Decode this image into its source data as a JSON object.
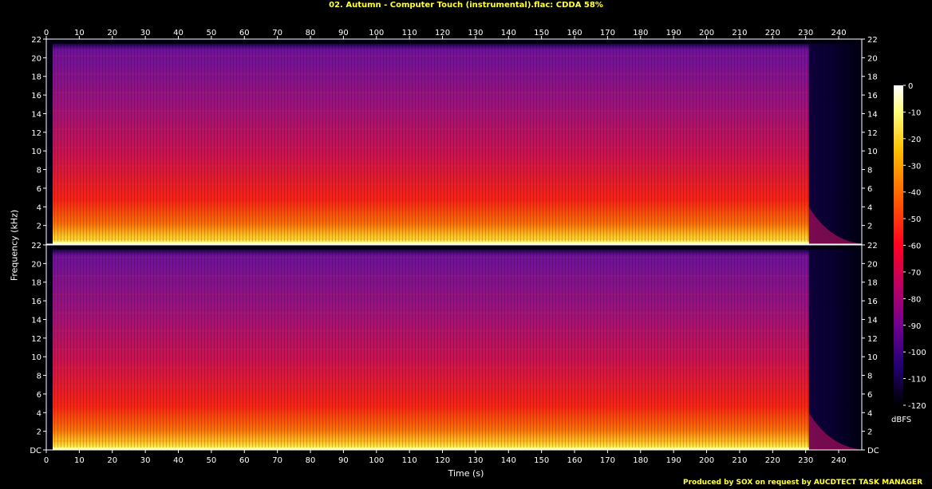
{
  "title": "02. Autumn - Computer Touch (instrumental).flac: CDDA 58%",
  "footer": "Produced by SOX on request by AUCDTECT TASK MANAGER",
  "chart_data": {
    "type": "heatmap",
    "title": "02. Autumn - Computer Touch (instrumental).flac: CDDA 58%",
    "xlabel": "Time (s)",
    "ylabel": "Frequency (kHz)",
    "xlim": [
      0,
      247
    ],
    "ylim": [
      0,
      22
    ],
    "x_ticks": [
      "0",
      "10",
      "20",
      "30",
      "40",
      "50",
      "60",
      "70",
      "80",
      "90",
      "100",
      "110",
      "120",
      "130",
      "140",
      "150",
      "160",
      "170",
      "180",
      "190",
      "200",
      "210",
      "220",
      "230",
      "240"
    ],
    "y_ticks": [
      "DC",
      "2",
      "4",
      "6",
      "8",
      "10",
      "12",
      "14",
      "16",
      "18",
      "20",
      "22"
    ],
    "channels": 2,
    "colorbar": {
      "label": "dBFS",
      "ticks": [
        "0",
        "-10",
        "-20",
        "-30",
        "-40",
        "-50",
        "-60",
        "-70",
        "-80",
        "-90",
        "-100",
        "-110",
        "-120"
      ],
      "range": [
        -120,
        0
      ]
    },
    "notes": {
      "content_end_s": 231,
      "lowpass_khz": 21.5
    }
  }
}
